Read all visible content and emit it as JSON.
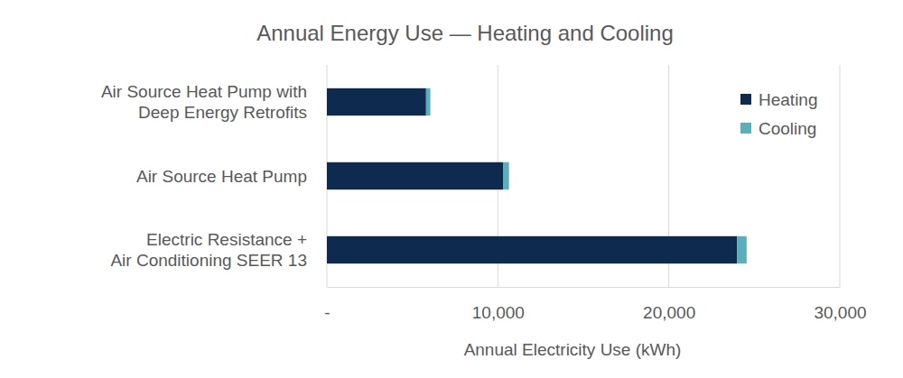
{
  "chart_data": {
    "type": "bar",
    "orientation": "horizontal",
    "stacked": true,
    "title": "Annual Energy Use — Heating and Cooling",
    "x_label": "Annual Electricity Use (kWh)",
    "categories": [
      "Air Source Heat Pump with\nDeep Energy Retrofits",
      "Air Source Heat Pump",
      "Electric Resistance +\nAir Conditioning SEER 13"
    ],
    "series": [
      {
        "name": "Heating",
        "color": "#0e2a4f",
        "values": [
          5800,
          10300,
          24000
        ]
      },
      {
        "name": "Cooling",
        "color": "#5aafbc",
        "values": [
          250,
          350,
          550
        ]
      }
    ],
    "xlim": [
      0,
      30000
    ],
    "xticks": [
      {
        "value": 0,
        "label": "-"
      },
      {
        "value": 10000,
        "label": "10,000"
      },
      {
        "value": 20000,
        "label": "20,000"
      },
      {
        "value": 30000,
        "label": "30,000"
      }
    ],
    "grid": true,
    "legend": "upper right"
  }
}
